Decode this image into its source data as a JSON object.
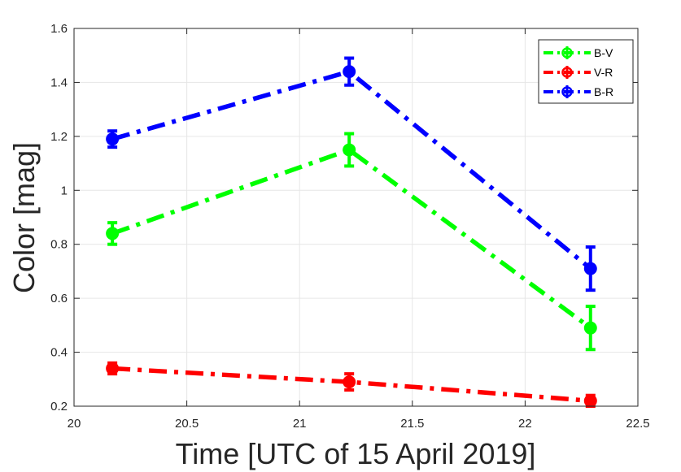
{
  "chart_data": {
    "type": "line",
    "xlabel": "Time [UTC of 15 April 2019]",
    "ylabel": "Color [mag]",
    "xlim": [
      20,
      22.5
    ],
    "ylim": [
      0.2,
      1.6
    ],
    "xticks": [
      20,
      20.5,
      21,
      21.5,
      22,
      22.5
    ],
    "xtick_labels": [
      "20",
      "20.5",
      "21",
      "21.5",
      "22",
      "22.5"
    ],
    "yticks": [
      0.2,
      0.4,
      0.6,
      0.8,
      1.0,
      1.2,
      1.4,
      1.6
    ],
    "ytick_labels": [
      "0.2",
      "0.4",
      "0.6",
      "0.8",
      "1",
      "1.2",
      "1.4",
      "1.6"
    ],
    "grid": true,
    "legend_position": "top-right",
    "series": [
      {
        "name": "B-V",
        "color": "#00ff00",
        "x": [
          20.17,
          21.22,
          22.29
        ],
        "y": [
          0.84,
          1.15,
          0.49
        ],
        "err": [
          0.04,
          0.06,
          0.08
        ]
      },
      {
        "name": "V-R",
        "color": "#ff0000",
        "x": [
          20.17,
          21.22,
          22.29
        ],
        "y": [
          0.34,
          0.29,
          0.22
        ],
        "err": [
          0.02,
          0.03,
          0.02
        ]
      },
      {
        "name": "B-R",
        "color": "#0000ff",
        "x": [
          20.17,
          21.22,
          22.29
        ],
        "y": [
          1.19,
          1.44,
          0.71
        ],
        "err": [
          0.03,
          0.05,
          0.08
        ]
      }
    ]
  }
}
